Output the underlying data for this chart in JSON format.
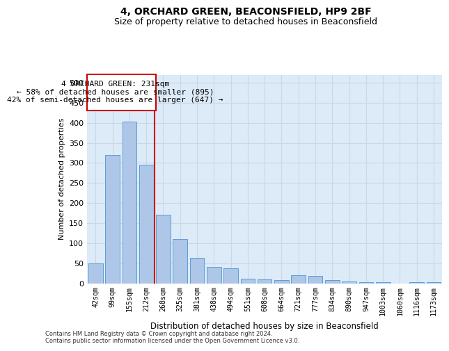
{
  "title1": "4, ORCHARD GREEN, BEACONSFIELD, HP9 2BF",
  "title2": "Size of property relative to detached houses in Beaconsfield",
  "xlabel": "Distribution of detached houses by size in Beaconsfield",
  "ylabel": "Number of detached properties",
  "categories": [
    "42sqm",
    "99sqm",
    "155sqm",
    "212sqm",
    "268sqm",
    "325sqm",
    "381sqm",
    "438sqm",
    "494sqm",
    "551sqm",
    "608sqm",
    "664sqm",
    "721sqm",
    "777sqm",
    "834sqm",
    "890sqm",
    "947sqm",
    "1003sqm",
    "1060sqm",
    "1116sqm",
    "1173sqm"
  ],
  "values": [
    50,
    320,
    403,
    295,
    170,
    110,
    63,
    40,
    38,
    12,
    10,
    8,
    20,
    18,
    8,
    5,
    3,
    2,
    0,
    2,
    3
  ],
  "bar_color": "#aec6e8",
  "bar_edge_color": "#5a9fd4",
  "annotation_vline_x": 3.5,
  "annotation_text_line1": "4 ORCHARD GREEN: 231sqm",
  "annotation_text_line2": "← 58% of detached houses are smaller (895)",
  "annotation_text_line3": "42% of semi-detached houses are larger (647) →",
  "annotation_box_color": "#ffffff",
  "annotation_box_edge": "#cc0000",
  "vline_color": "#cc0000",
  "footer1": "Contains HM Land Registry data © Crown copyright and database right 2024.",
  "footer2": "Contains public sector information licensed under the Open Government Licence v3.0.",
  "ylim": [
    0,
    520
  ],
  "yticks": [
    0,
    50,
    100,
    150,
    200,
    250,
    300,
    350,
    400,
    450,
    500
  ],
  "grid_color": "#c8d8e8",
  "bg_color": "#ddeaf7",
  "title1_fontsize": 10,
  "title2_fontsize": 9
}
